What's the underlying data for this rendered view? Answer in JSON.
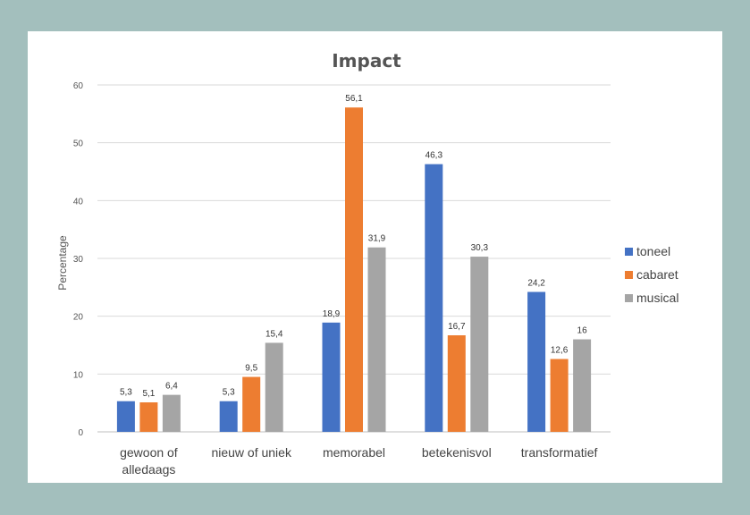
{
  "chart_data": {
    "type": "bar",
    "title": "Impact",
    "xlabel": "",
    "ylabel": "Percentage",
    "ylim": [
      0,
      60
    ],
    "yticks": [
      0,
      10,
      20,
      30,
      40,
      50,
      60
    ],
    "categories": [
      [
        "gewoon of",
        "alledaags"
      ],
      [
        "nieuw of uniek"
      ],
      [
        "memorabel"
      ],
      [
        "betekenisvol"
      ],
      [
        "transformatief"
      ]
    ],
    "series": [
      {
        "name": "toneel",
        "color": "#4472c4",
        "values": [
          5.3,
          5.3,
          18.9,
          46.3,
          24.2
        ],
        "labels": [
          "5,3",
          "5,3",
          "18,9",
          "46,3",
          "24,2"
        ]
      },
      {
        "name": "cabaret",
        "color": "#ed7d31",
        "values": [
          5.1,
          9.5,
          56.1,
          16.7,
          12.6
        ],
        "labels": [
          "5,1",
          "9,5",
          "56,1",
          "16,7",
          "12,6"
        ]
      },
      {
        "name": "musical",
        "color": "#a5a5a5",
        "values": [
          6.4,
          15.4,
          31.9,
          30.3,
          16
        ],
        "labels": [
          "6,4",
          "15,4",
          "31,9",
          "30,3",
          "16"
        ]
      }
    ],
    "grid": true,
    "legend": "right"
  }
}
